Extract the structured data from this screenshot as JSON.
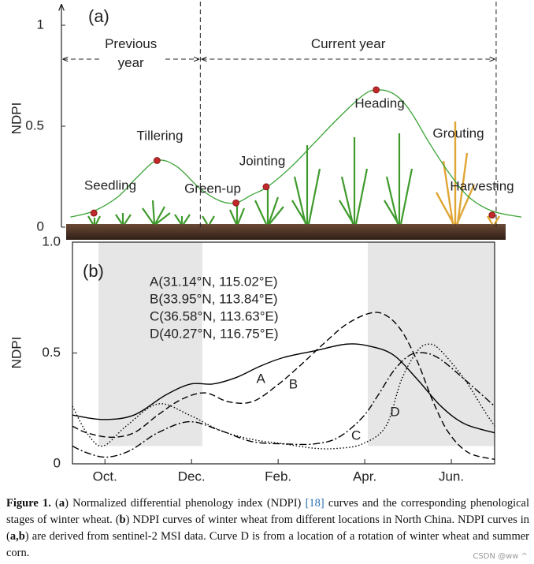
{
  "chart_data": [
    {
      "type": "line",
      "title": "(a)",
      "ylabel": "NDPI",
      "ylim": [
        0,
        1
      ],
      "yticks": [
        0,
        0.5,
        1
      ],
      "xlim": [
        -2,
        100
      ],
      "periods": [
        {
          "label": "Previous year",
          "x": [
            -2,
            28.8
          ]
        },
        {
          "label": "Current year",
          "x": [
            28.8,
            94.4
          ]
        }
      ],
      "series": [
        {
          "color": "#3aa335",
          "x": [
            0,
            5.2,
            10.5,
            14.9,
            19.2,
            23.6,
            28.8,
            33.2,
            36.7,
            40.2,
            43.7,
            49,
            54.2,
            59.4,
            64.7,
            67.8,
            71.7,
            75.2,
            79.5,
            83.9,
            88.3,
            93.5,
            100
          ],
          "values": [
            0.05,
            0.08,
            0.15,
            0.25,
            0.33,
            0.3,
            0.19,
            0.13,
            0.12,
            0.16,
            0.2,
            0.3,
            0.42,
            0.54,
            0.65,
            0.68,
            0.66,
            0.58,
            0.42,
            0.27,
            0.15,
            0.08,
            0.05
          ]
        }
      ],
      "stages": {
        "color": "#c0282a",
        "labels": [
          "Seedling",
          "Tillering",
          "Green-up",
          "Jointing",
          "Heading",
          "Grouting",
          "Harvesting"
        ],
        "x": [
          5.2,
          19.2,
          36.7,
          43.4,
          67.8,
          83.9,
          93.5
        ],
        "values": [
          0.07,
          0.33,
          0.12,
          0.2,
          0.68,
          null,
          0.06
        ]
      }
    },
    {
      "type": "line",
      "title": "(b)",
      "ylabel": "NDPI",
      "ylim": [
        0,
        1
      ],
      "yticks": [
        0,
        0.5,
        {
          "value": 1,
          "label": "1.0"
        }
      ],
      "xlim": [
        9.25,
        19
      ],
      "xticks": [
        {
          "value": 10,
          "label": "Oct."
        },
        {
          "value": 12,
          "label": "Dec."
        },
        {
          "value": 14,
          "label": "Feb."
        },
        {
          "value": 16,
          "label": "Apr."
        },
        {
          "value": 18,
          "label": "Jun."
        }
      ],
      "shaded": [
        {
          "x": [
            9.85,
            12.25
          ],
          "y": [
            0.08,
            1
          ]
        },
        {
          "x": [
            16.07,
            19
          ],
          "y": [
            0.08,
            1
          ]
        }
      ],
      "shade_color": "#e6e6e6",
      "series": [
        {
          "name": "A",
          "location": "A(31.14°N, 115.02°E)",
          "color": "#000000",
          "dash": "solid",
          "label_x": 13.6,
          "x": [
            9.25,
            9.95,
            10.67,
            11.4,
            11.98,
            12.49,
            13.04,
            13.58,
            14.13,
            14.85,
            15.58,
            16.13,
            16.67,
            17.22,
            17.76,
            18.31,
            19
          ],
          "values": [
            0.22,
            0.2,
            0.22,
            0.31,
            0.36,
            0.36,
            0.39,
            0.44,
            0.48,
            0.51,
            0.54,
            0.53,
            0.49,
            0.38,
            0.26,
            0.18,
            0.14
          ]
        },
        {
          "name": "B",
          "location": "B(33.95°N, 113.84°E)",
          "color": "#000000",
          "dash": "dashed",
          "label_x": 14.35,
          "x": [
            9.25,
            9.58,
            10.13,
            10.67,
            11.22,
            11.76,
            12.31,
            12.85,
            13.4,
            13.95,
            14.49,
            15.04,
            15.58,
            16.13,
            16.49,
            16.85,
            17.22,
            17.58,
            17.94,
            18.4,
            19
          ],
          "values": [
            0.17,
            0.14,
            0.12,
            0.14,
            0.22,
            0.29,
            0.32,
            0.28,
            0.28,
            0.35,
            0.44,
            0.54,
            0.63,
            0.68,
            0.67,
            0.6,
            0.46,
            0.28,
            0.14,
            0.05,
            0.02
          ]
        },
        {
          "name": "C",
          "location": "C(36.58°N, 113.63°E)",
          "color": "#000000",
          "dash": "dashdot",
          "label_x": 15.8,
          "x": [
            9.25,
            9.58,
            10.04,
            10.58,
            11.22,
            11.95,
            12.67,
            13.4,
            14.13,
            14.85,
            15.4,
            15.95,
            16.31,
            16.67,
            17.04,
            17.4,
            17.76,
            18.31,
            19
          ],
          "values": [
            0.08,
            0.05,
            0.03,
            0.06,
            0.14,
            0.19,
            0.15,
            0.1,
            0.09,
            0.09,
            0.12,
            0.21,
            0.31,
            0.42,
            0.49,
            0.5,
            0.47,
            0.38,
            0.26
          ]
        },
        {
          "name": "D",
          "location": "D(40.27°N, 116.75°E)",
          "color": "#000000",
          "dash": "dotted",
          "label_x": 16.7,
          "x": [
            9.25,
            9.58,
            9.95,
            10.49,
            11.22,
            11.95,
            12.67,
            13.4,
            14.13,
            14.85,
            15.4,
            15.95,
            16.49,
            16.85,
            17.22,
            17.49,
            17.76,
            18.31,
            18.76,
            19
          ],
          "values": [
            0.26,
            0.14,
            0.08,
            0.17,
            0.27,
            0.22,
            0.15,
            0.11,
            0.09,
            0.07,
            0.07,
            0.09,
            0.17,
            0.38,
            0.51,
            0.54,
            0.51,
            0.38,
            0.24,
            0.17
          ]
        }
      ]
    }
  ],
  "caption": {
    "runs": [
      {
        "text": "Figure 1.",
        "style": "bold"
      },
      {
        "text": "  (",
        "style": "plain"
      },
      {
        "text": "a",
        "style": "bold"
      },
      {
        "text": ") Normalized differential phenology index (NDPI) ",
        "style": "plain"
      },
      {
        "text": "[18]",
        "style": "link"
      },
      {
        "text": " curves and the corresponding phenological stages of winter wheat. (",
        "style": "plain"
      },
      {
        "text": "b",
        "style": "bold"
      },
      {
        "text": ") NDPI curves of winter wheat from different locations in North China.  NDPI curves in (",
        "style": "plain"
      },
      {
        "text": "a,b",
        "style": "bold"
      },
      {
        "text": ") are derived from sentinel-2 MSI data.  Curve D is from a location of a rotation of winter wheat and summer corn.",
        "style": "plain"
      }
    ]
  },
  "watermark": "CSDN @ww ^"
}
